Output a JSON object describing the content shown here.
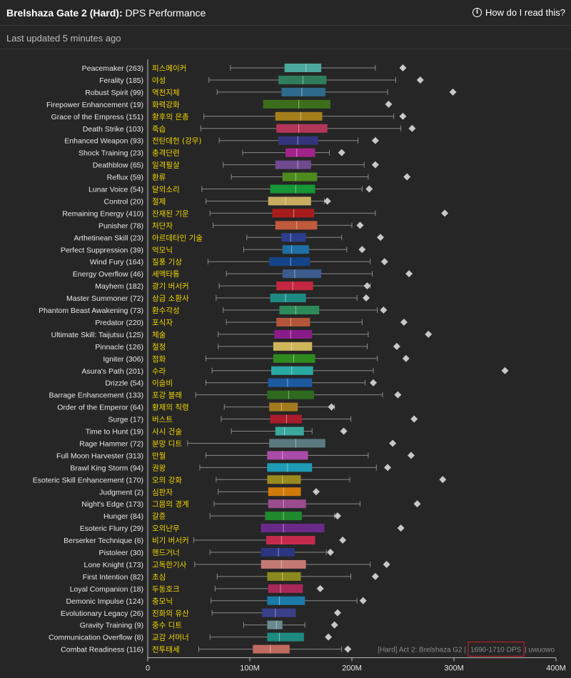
{
  "header": {
    "title_bold": "Brelshaza Gate 2 (Hard):",
    "title_rest": "DPS Performance",
    "help_label": "How do I read this?"
  },
  "subheader": {
    "updated_text": "Last updated 5 minutes ago"
  },
  "watermark": {
    "prefix": "[Hard] Act 2: Brelshaza G2 |",
    "dps_range": "1690-1710 DPS",
    "suffix": "| uwuowo"
  },
  "colors": {
    "background": "#262626",
    "korean_label": "#f0d400",
    "whisker": "#8a8a8a",
    "outlier": "#c8c8c8",
    "highlight_box": "#cc2222"
  },
  "chart_data": {
    "type": "box",
    "xlabel": "",
    "ylabel": "",
    "xlim": [
      0,
      400000000
    ],
    "x_ticks": [
      0,
      100000000,
      200000000,
      300000000,
      400000000
    ],
    "x_tick_labels": [
      "0",
      "100M",
      "200M",
      "300M",
      "400M"
    ],
    "grid": false,
    "rows": [
      {
        "name": "Peacemaker (263)",
        "ko": "피스메이커",
        "color": "#4aa89c",
        "min": 81,
        "q1": 134,
        "median": 155,
        "q3": 170,
        "max": 223,
        "outlier": 250
      },
      {
        "name": "Ferality (185)",
        "ko": "야성",
        "color": "#2f7d5a",
        "min": 60,
        "q1": 128,
        "median": 152,
        "q3": 175,
        "max": 243,
        "outlier": 267
      },
      {
        "name": "Robust Spirit (99)",
        "ko": "역천지체",
        "color": "#2e6a8c",
        "min": 68,
        "q1": 131,
        "median": 151,
        "q3": 174,
        "max": 235,
        "outlier": 299
      },
      {
        "name": "Firepower Enhancement (19)",
        "ko": "화력강화",
        "color": "#3c6e1c",
        "min": null,
        "q1": 113,
        "median": 148,
        "q3": 179,
        "max": null,
        "outlier": 236
      },
      {
        "name": "Grace of the Empress (151)",
        "ko": "황후의 은총",
        "color": "#a47f1c",
        "min": 55,
        "q1": 125,
        "median": 150,
        "q3": 171,
        "max": 241,
        "outlier": 250
      },
      {
        "name": "Death Strike (103)",
        "ko": "죽습",
        "color": "#b3365a",
        "min": 52,
        "q1": 126,
        "median": 148,
        "q3": 176,
        "max": 248,
        "outlier": 259
      },
      {
        "name": "Enhanced Weapon (93)",
        "ko": "전탄데헌 (강무)",
        "color": "#35347f",
        "min": 70,
        "q1": 128,
        "median": 147,
        "q3": 167,
        "max": 206,
        "outlier": 223
      },
      {
        "name": "Shock Training (23)",
        "ko": "충격단련",
        "color": "#a3238a",
        "min": 93,
        "q1": 135,
        "median": 146,
        "q3": 164,
        "max": 178,
        "outlier": 190
      },
      {
        "name": "Deathblow (65)",
        "ko": "일격필살",
        "color": "#6f4a8f",
        "min": 74,
        "q1": 125,
        "median": 147,
        "q3": 160,
        "max": 212,
        "outlier": 223
      },
      {
        "name": "Reflux (59)",
        "ko": "환류",
        "color": "#4f8a1e",
        "min": 82,
        "q1": 132,
        "median": 145,
        "q3": 166,
        "max": 216,
        "outlier": 254
      },
      {
        "name": "Lunar Voice (54)",
        "ko": "달의소리",
        "color": "#169634",
        "min": 53,
        "q1": 120,
        "median": 145,
        "q3": 164,
        "max": 210,
        "outlier": 217
      },
      {
        "name": "Control (20)",
        "ko": "절제",
        "color": "#c9ac60",
        "min": 57,
        "q1": 118,
        "median": 135,
        "q3": 160,
        "max": 173,
        "outlier": 176
      },
      {
        "name": "Remaining Energy (410)",
        "ko": "잔재된 기운",
        "color": "#a81c1c",
        "min": 61,
        "q1": 122,
        "median": 143,
        "q3": 163,
        "max": 223,
        "outlier": 291
      },
      {
        "name": "Punisher (78)",
        "ko": "처단자",
        "color": "#c05a3c",
        "min": 64,
        "q1": 125,
        "median": 146,
        "q3": 166,
        "max": 200,
        "outlier": 208
      },
      {
        "name": "Arthetinean Skill (23)",
        "ko": "아르데타인 기술",
        "color": "#2c3f8c",
        "min": 97,
        "q1": 131,
        "median": 140,
        "q3": 155,
        "max": 190,
        "outlier": 228
      },
      {
        "name": "Perfect Suppression (39)",
        "ko": "억모닉",
        "color": "#1e6fa3",
        "min": 94,
        "q1": 132,
        "median": 141,
        "q3": 158,
        "max": 195,
        "outlier": 210
      },
      {
        "name": "Wind Fury (164)",
        "ko": "질풍 기상",
        "color": "#14458a",
        "min": 59,
        "q1": 119,
        "median": 140,
        "q3": 159,
        "max": 218,
        "outlier": 232
      },
      {
        "name": "Energy Overflow (46)",
        "ko": "세맥타통",
        "color": "#3b5c8c",
        "min": 77,
        "q1": 132,
        "median": 144,
        "q3": 170,
        "max": 220,
        "outlier": 256
      },
      {
        "name": "Mayhem (182)",
        "ko": "광기 버서커",
        "color": "#c4273f",
        "min": 70,
        "q1": 126,
        "median": 142,
        "q3": 162,
        "max": 218,
        "outlier": 215
      },
      {
        "name": "Master Summoner (72)",
        "ko": "상급 소환사",
        "color": "#1e8a84",
        "min": 67,
        "q1": 120,
        "median": 135,
        "q3": 155,
        "max": 205,
        "outlier": 214
      },
      {
        "name": "Phantom Beast Awakening (73)",
        "ko": "환수각성",
        "color": "#2f8a5a",
        "min": 74,
        "q1": 129,
        "median": 145,
        "q3": 168,
        "max": 225,
        "outlier": 231
      },
      {
        "name": "Predator (220)",
        "ko": "포식자",
        "color": "#b3553a",
        "min": 77,
        "q1": 126,
        "median": 140,
        "q3": 159,
        "max": 210,
        "outlier": 251
      },
      {
        "name": "Ultimate Skill: Taijutsu (125)",
        "ko": "체술",
        "color": "#8a1c8a",
        "min": 69,
        "q1": 124,
        "median": 140,
        "q3": 161,
        "max": 216,
        "outlier": 275
      },
      {
        "name": "Pinnacle (126)",
        "ko": "절정",
        "color": "#cdb55a",
        "min": 69,
        "q1": 123,
        "median": 141,
        "q3": 161,
        "max": 215,
        "outlier": 244
      },
      {
        "name": "Igniter (306)",
        "ko": "점화",
        "color": "#2f8a1e",
        "min": 57,
        "q1": 123,
        "median": 143,
        "q3": 164,
        "max": 225,
        "outlier": 253
      },
      {
        "name": "Asura's Path (201)",
        "ko": "수라",
        "color": "#2aa8a4",
        "min": 63,
        "q1": 121,
        "median": 141,
        "q3": 162,
        "max": 221,
        "outlier": 350
      },
      {
        "name": "Drizzle (54)",
        "ko": "이슬비",
        "color": "#1c5aa0",
        "min": 57,
        "q1": 118,
        "median": 137,
        "q3": 161,
        "max": 213,
        "outlier": 221
      },
      {
        "name": "Barrage Enhancement (133)",
        "ko": "포강 블래",
        "color": "#2e6a1e",
        "min": 47,
        "q1": 117,
        "median": 138,
        "q3": 163,
        "max": 230,
        "outlier": 245
      },
      {
        "name": "Order of the Emperor (64)",
        "ko": "황제의 칙령",
        "color": "#a47a1e",
        "min": 75,
        "q1": 119,
        "median": 131,
        "q3": 147,
        "max": 183,
        "outlier": 180
      },
      {
        "name": "Surge (17)",
        "ko": "버스트",
        "color": "#a81c2c",
        "min": 72,
        "q1": 120,
        "median": 136,
        "q3": 151,
        "max": 199,
        "outlier": 261
      },
      {
        "name": "Time to Hunt (19)",
        "ko": "사시 건술",
        "color": "#3aa89c",
        "min": 82,
        "q1": 125,
        "median": 134,
        "q3": 153,
        "max": 161,
        "outlier": 192
      },
      {
        "name": "Rage Hammer (72)",
        "ko": "분망 디트",
        "color": "#5a7a7f",
        "min": 39,
        "q1": 119,
        "median": 145,
        "q3": 174,
        "max": null,
        "outlier": 240
      },
      {
        "name": "Full Moon Harvester (313)",
        "ko": "만월",
        "color": "#a84ca8",
        "min": 57,
        "q1": 117,
        "median": 132,
        "q3": 157,
        "max": 216,
        "outlier": 258
      },
      {
        "name": "Brawl King Storm (94)",
        "ko": "권왕",
        "color": "#1e9cb5",
        "min": 51,
        "q1": 117,
        "median": 137,
        "q3": 161,
        "max": 224,
        "outlier": 235
      },
      {
        "name": "Esoteric Skill Enhancement (170)",
        "ko": "오의 강화",
        "color": "#9a8a1e",
        "min": 67,
        "q1": 117,
        "median": 132,
        "q3": 150,
        "max": 198,
        "outlier": 289
      },
      {
        "name": "Judgment (2)",
        "ko": "심판자",
        "color": "#d17a0c",
        "min": 69,
        "q1": 118,
        "median": 133,
        "q3": 150,
        "max": null,
        "outlier": 165
      },
      {
        "name": "Night's Edge (173)",
        "ko": "그믐의 경계",
        "color": "#9a4c8f",
        "min": 65,
        "q1": 118,
        "median": 133,
        "q3": 155,
        "max": 208,
        "outlier": 264
      },
      {
        "name": "Hunger (84)",
        "ko": "갈증",
        "color": "#1e8a2c",
        "min": 61,
        "q1": 115,
        "median": 133,
        "q3": 151,
        "max": 183,
        "outlier": 186
      },
      {
        "name": "Esoteric Flurry (29)",
        "ko": "오의난무",
        "color": "#6a2a8a",
        "min": null,
        "q1": 111,
        "median": 133,
        "q3": 173,
        "max": null,
        "outlier": 248
      },
      {
        "name": "Berserker Technique (6)",
        "ko": "비기 버서커",
        "color": "#c42a4c",
        "min": 45,
        "q1": 116,
        "median": 131,
        "q3": 164,
        "max": null,
        "outlier": 191
      },
      {
        "name": "Pistoleer (30)",
        "ko": "핸드거너",
        "color": "#2c3580",
        "min": 61,
        "q1": 111,
        "median": 128,
        "q3": 144,
        "max": 175,
        "outlier": 179
      },
      {
        "name": "Lone Knight (173)",
        "ko": "고독한기사",
        "color": "#c47a74",
        "min": 46,
        "q1": 111,
        "median": 131,
        "q3": 155,
        "max": 218,
        "outlier": 234
      },
      {
        "name": "First Intention (82)",
        "ko": "초심",
        "color": "#8a8a1e",
        "min": 68,
        "q1": 117,
        "median": 132,
        "q3": 150,
        "max": 199,
        "outlier": 223
      },
      {
        "name": "Loyal Companion (18)",
        "ko": "두동호크",
        "color": "#a8285a",
        "min": 66,
        "q1": 118,
        "median": 130,
        "q3": 152,
        "max": null,
        "outlier": 169
      },
      {
        "name": "Demonic Impulse (124)",
        "ko": "충모닉",
        "color": "#1c7aa8",
        "min": 62,
        "q1": 117,
        "median": 129,
        "q3": 154,
        "max": 205,
        "outlier": 211
      },
      {
        "name": "Evolutionary Legacy (26)",
        "ko": "진화의 유산",
        "color": "#3a3f8a",
        "min": 63,
        "q1": 112,
        "median": 125,
        "q3": 145,
        "max": null,
        "outlier": 186
      },
      {
        "name": "Gravity Training (9)",
        "ko": "중수 디트",
        "color": "#6a8a8f",
        "min": 94,
        "q1": 117,
        "median": 126,
        "q3": 132,
        "max": 154,
        "outlier": 183
      },
      {
        "name": "Communication Overflow (8)",
        "ko": "교감 서머너",
        "color": "#1e8a80",
        "min": 61,
        "q1": 117,
        "median": 129,
        "q3": 153,
        "max": null,
        "outlier": 177
      },
      {
        "name": "Combat Readiness (116)",
        "ko": "전투태세",
        "color": "#c06a60",
        "min": 50,
        "q1": 103,
        "median": 120,
        "q3": 139,
        "max": 190,
        "outlier": 196
      }
    ]
  }
}
